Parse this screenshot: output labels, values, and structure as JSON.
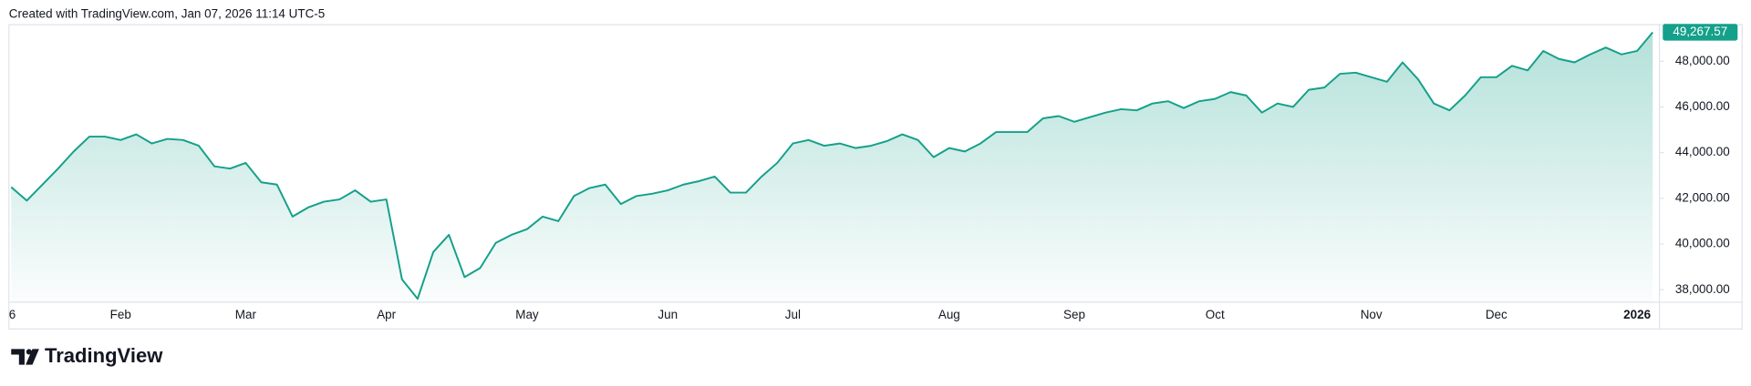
{
  "chart_data": {
    "type": "area",
    "caption": "Created with TradingView.com, Jan 07, 2026 11:14 UTC-5",
    "brand": "TradingView",
    "color": "#14a08a",
    "last_value_label": "49,267.57",
    "categories": [
      "6",
      null,
      null,
      null,
      null,
      null,
      null,
      "Feb",
      null,
      null,
      null,
      null,
      null,
      null,
      null,
      "Mar",
      null,
      null,
      null,
      null,
      null,
      null,
      null,
      null,
      "Apr",
      null,
      null,
      null,
      null,
      null,
      null,
      null,
      null,
      "May",
      null,
      null,
      null,
      null,
      null,
      null,
      null,
      null,
      "Jun",
      null,
      null,
      null,
      null,
      null,
      null,
      null,
      "Jul",
      null,
      null,
      null,
      null,
      null,
      null,
      null,
      null,
      null,
      "Aug",
      null,
      null,
      null,
      null,
      null,
      null,
      null,
      "Sep",
      null,
      null,
      null,
      null,
      null,
      null,
      null,
      null,
      "Oct",
      null,
      null,
      null,
      null,
      null,
      null,
      null,
      null,
      null,
      "Nov",
      null,
      null,
      null,
      null,
      null,
      null,
      null,
      "Dec",
      null,
      null,
      null,
      null,
      null,
      null,
      null,
      null,
      "2026",
      null
    ],
    "values": [
      42490,
      41900,
      42600,
      43300,
      44050,
      44700,
      44700,
      44550,
      44800,
      44400,
      44600,
      44550,
      44300,
      43400,
      43300,
      43550,
      42700,
      42600,
      41200,
      41600,
      41850,
      41950,
      42350,
      41850,
      41950,
      38450,
      37600,
      39650,
      40400,
      38550,
      38950,
      40050,
      40400,
      40650,
      41200,
      41000,
      42100,
      42450,
      42600,
      41750,
      42100,
      42200,
      42350,
      42600,
      42750,
      42950,
      42250,
      42250,
      42950,
      43550,
      44400,
      44550,
      44300,
      44400,
      44200,
      44300,
      44500,
      44800,
      44550,
      43800,
      44200,
      44050,
      44400,
      44900,
      44900,
      44900,
      45500,
      45600,
      45350,
      45550,
      45750,
      45900,
      45850,
      46150,
      46250,
      45950,
      46250,
      46350,
      46650,
      46500,
      45750,
      46150,
      46000,
      46750,
      46850,
      47450,
      47500,
      47300,
      47100,
      47950,
      47200,
      46150,
      45850,
      46500,
      47300,
      47300,
      47800,
      47600,
      48450,
      48100,
      47950,
      48300,
      48600,
      48300,
      48450,
      49267.57
    ],
    "ylim": [
      37450,
      49600
    ],
    "yticks": [
      {
        "value": 38000,
        "label": "38,000.00"
      },
      {
        "value": 40000,
        "label": "40,000.00"
      },
      {
        "value": 42000,
        "label": "42,000.00"
      },
      {
        "value": 44000,
        "label": "44,000.00"
      },
      {
        "value": 46000,
        "label": "46,000.00"
      },
      {
        "value": 48000,
        "label": "48,000.00"
      }
    ]
  }
}
